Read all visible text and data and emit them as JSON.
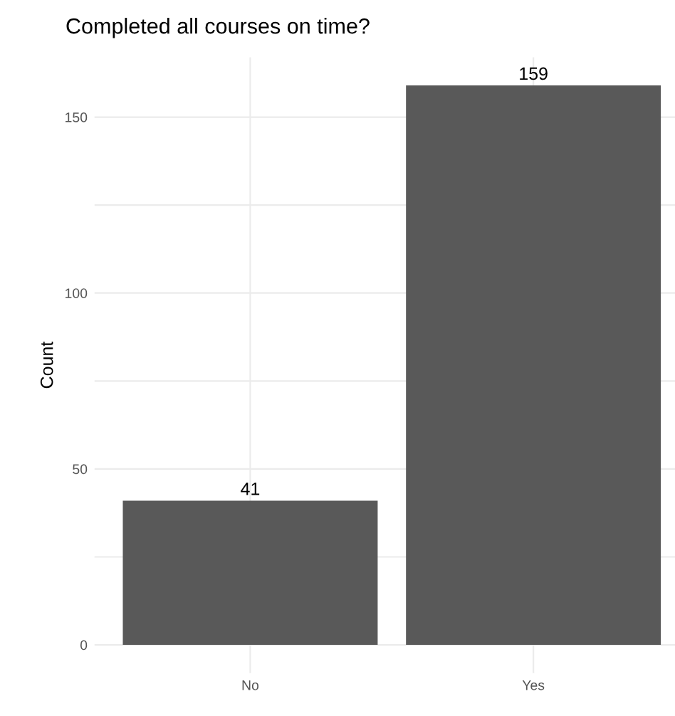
{
  "chart_data": {
    "type": "bar",
    "title": "Completed all courses on time?",
    "ylabel": "Count",
    "categories": [
      "No",
      "Yes"
    ],
    "values": [
      41,
      159
    ],
    "color": "#595959",
    "ylim": [
      -8,
      167
    ],
    "yticks": [
      0,
      {
        "value": 25,
        "label": null
      },
      50,
      {
        "value": 75,
        "label": null
      },
      100,
      {
        "value": 125,
        "label": null
      },
      150
    ],
    "grid": true,
    "data_labels": true
  }
}
